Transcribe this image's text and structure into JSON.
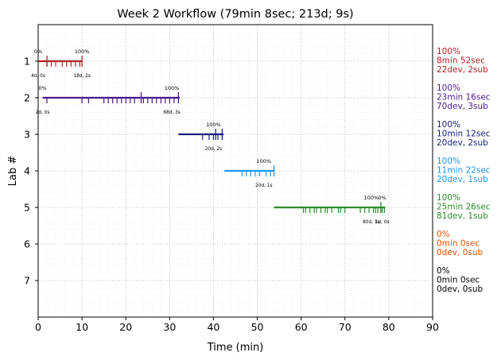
{
  "chart_data": {
    "type": "timeline",
    "title": "Week 2 Workflow (79min 8sec; 213d; 9s)",
    "xlabel": "Time (min)",
    "ylabel": "Lab #",
    "xlim": [
      0,
      90
    ],
    "ylim": [
      8,
      0
    ],
    "x_ticks": [
      0,
      10,
      20,
      30,
      40,
      50,
      60,
      70,
      80,
      90
    ],
    "y_ticks": [
      1,
      2,
      3,
      4,
      5,
      6,
      7
    ],
    "grid": true,
    "labs": [
      {
        "lab": 1,
        "color": "#b22222",
        "start": 0,
        "end": 10,
        "dev_marks": [
          2,
          3,
          4,
          5.5,
          6.5,
          7.5,
          8.5,
          9.5
        ],
        "sub_marks": [
          2,
          10
        ],
        "summary": [
          "100%",
          "8min 52sec",
          "22dev, 2sub"
        ],
        "annotations": [
          {
            "x": 0,
            "above": "0%",
            "below": "4d, 0s"
          },
          {
            "x": 10,
            "above": "100%",
            "below": "18d, 2s"
          }
        ]
      },
      {
        "lab": 2,
        "color": "#4b1a8a",
        "start": 1,
        "end": 32.3,
        "dev_marks": [
          2,
          10,
          11.5,
          15,
          16,
          17,
          18,
          19,
          20,
          21,
          22,
          24,
          25,
          26,
          27,
          28,
          29,
          30,
          31
        ],
        "sub_marks": [
          23.5,
          32
        ],
        "summary": [
          "100%",
          "23min 16sec",
          "70dev, 3sub"
        ],
        "annotations": [
          {
            "x": 1,
            "above": "0%",
            "below": "2d, 0s"
          },
          {
            "x": 30.5,
            "above": "100%",
            "below": "68d, 3s"
          }
        ]
      },
      {
        "lab": 3,
        "color": "#1a237e",
        "start": 32,
        "end": 42.3,
        "dev_marks": [
          37.5,
          39,
          40,
          41,
          42
        ],
        "sub_marks": [
          40.5,
          42
        ],
        "summary": [
          "100%",
          "10min 12sec",
          "20dev, 2sub"
        ],
        "annotations": [
          {
            "x": 40,
            "above": "100%",
            "below": "20d, 2s"
          }
        ]
      },
      {
        "lab": 4,
        "color": "#2196f3",
        "start": 42.5,
        "end": 53.8,
        "dev_marks": [
          46.5,
          47.5,
          48.5,
          49.5,
          50.5,
          52,
          53
        ],
        "sub_marks": [
          53.8
        ],
        "summary": [
          "100%",
          "11min 22sec",
          "20dev, 1sub"
        ],
        "annotations": [
          {
            "x": 51.5,
            "above": "100%",
            "below": "20d, 1s"
          }
        ]
      },
      {
        "lab": 5,
        "color": "#2e8b2e",
        "start": 53.8,
        "end": 79.2,
        "dev_marks": [
          60.5,
          61,
          62,
          63,
          63.5,
          64.5,
          65.5,
          66,
          67,
          68.5,
          69,
          70,
          73.5,
          74.5,
          75.5,
          76.5,
          77,
          77.5,
          78.5,
          79
        ],
        "sub_marks": [
          78.2
        ],
        "summary": [
          "100%",
          "25min 26sec",
          "81dev, 1sub"
        ],
        "annotations": [
          {
            "x": 76,
            "above": "100%",
            "below": "80d, 1s"
          },
          {
            "x": 78.5,
            "above": "0%",
            "below": "1d, 0s"
          }
        ]
      },
      {
        "lab": 6,
        "color": "#e65100",
        "start": null,
        "end": null,
        "dev_marks": [],
        "sub_marks": [],
        "summary": [
          "0%",
          "0min 0sec",
          "0dev, 0sub"
        ],
        "annotations": []
      },
      {
        "lab": 7,
        "color": "#000000",
        "start": null,
        "end": null,
        "dev_marks": [],
        "sub_marks": [],
        "summary": [
          "0%",
          "0min 0sec",
          "0dev, 0sub"
        ],
        "annotations": []
      }
    ]
  }
}
